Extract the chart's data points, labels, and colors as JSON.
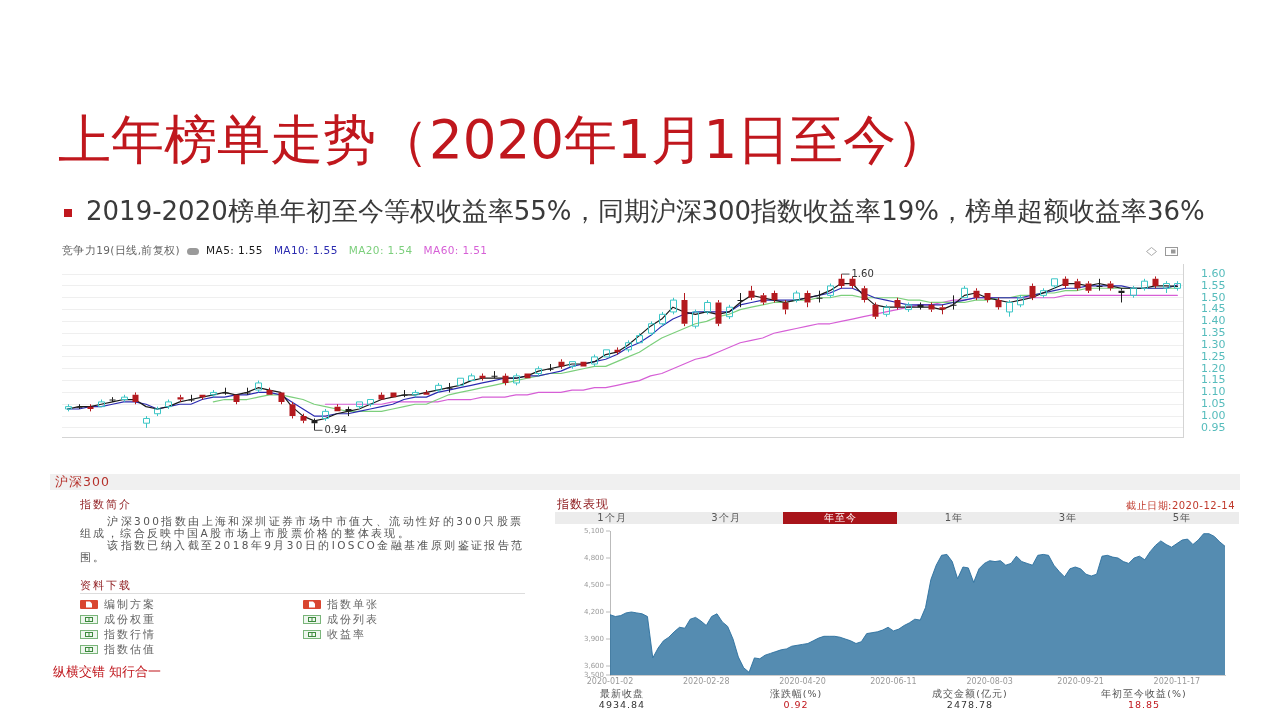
{
  "chart_data": [
    {
      "type": "candlestick",
      "title": "上年榜单走势（2020年1月1日至今）",
      "subtitle": "2019-2020榜单年初至今等权收益率55%，同期沪深300指数收益率19%，榜单超额收益率36%",
      "legend_title": "竞争力19(日线,前复权)",
      "legend": "top left",
      "grid": "y",
      "tick_labels": "y",
      "categories": [
        null,
        null,
        null,
        null,
        null,
        null,
        null,
        null,
        null,
        null,
        null,
        null,
        null,
        null,
        null,
        null,
        null,
        null,
        null,
        null,
        null,
        null,
        null,
        null,
        null,
        null,
        null,
        null,
        null,
        null,
        null,
        null,
        null,
        null,
        null,
        null,
        null,
        null,
        null,
        null,
        null,
        null,
        null,
        null,
        null,
        null,
        null,
        null,
        null,
        null,
        null,
        null,
        null,
        null,
        null,
        null,
        null,
        null,
        null,
        null,
        null,
        null,
        null,
        null,
        null,
        null,
        null,
        null,
        null,
        null,
        null,
        null,
        null,
        null,
        null,
        null,
        null,
        null,
        null,
        null,
        null,
        null,
        null,
        null,
        null,
        null,
        null,
        null,
        null,
        null,
        null,
        null,
        null,
        null,
        null,
        null,
        null,
        null,
        null,
        null
      ],
      "ylim": [
        0.91,
        1.64
      ],
      "yticks": [
        0.95,
        {
          "value": 1,
          "label": "1.00"
        },
        1.05,
        {
          "value": 1.1,
          "label": "1.10"
        },
        1.15,
        {
          "value": 1.2,
          "label": "1.20"
        },
        1.25,
        {
          "value": 1.3,
          "label": "1.30"
        },
        1.35,
        {
          "value": 1.4,
          "label": "1.40"
        },
        1.45,
        {
          "value": 1.5,
          "label": "1.50"
        },
        1.55,
        {
          "value": 1.6,
          "label": "1.60"
        }
      ],
      "series": [
        {
          "type": "candlestick",
          "ohlc": [
            [
              1.03,
              1.05,
              1.02,
              1.04
            ],
            [
              1.04,
              1.05,
              1.03,
              1.04
            ],
            [
              1.04,
              1.05,
              1.02,
              1.03
            ],
            [
              1.04,
              1.07,
              1.04,
              1.06
            ],
            [
              1.07,
              1.08,
              1.06,
              1.07
            ],
            [
              1.07,
              1.09,
              1.06,
              1.08
            ],
            [
              1.09,
              1.1,
              1.05,
              1.06
            ],
            [
              0.97,
              1.0,
              0.95,
              0.99
            ],
            [
              1.01,
              1.04,
              1.0,
              1.03
            ],
            [
              1.04,
              1.07,
              1.03,
              1.06
            ],
            [
              1.08,
              1.09,
              1.06,
              1.07
            ],
            [
              1.07,
              1.09,
              1.06,
              1.07
            ],
            [
              1.09,
              1.09,
              1.07,
              1.08
            ],
            [
              1.09,
              1.11,
              1.08,
              1.1
            ],
            [
              1.1,
              1.12,
              1.09,
              1.1
            ],
            [
              1.09,
              1.09,
              1.05,
              1.06
            ],
            [
              1.1,
              1.12,
              1.09,
              1.1
            ],
            [
              1.11,
              1.15,
              1.1,
              1.14
            ],
            [
              1.11,
              1.12,
              1.09,
              1.09
            ],
            [
              1.1,
              1.1,
              1.05,
              1.06
            ],
            [
              1.05,
              1.06,
              0.99,
              1.0
            ],
            [
              1.0,
              1.01,
              0.97,
              0.98
            ],
            [
              0.98,
              0.99,
              0.94,
              0.97
            ],
            [
              0.99,
              1.03,
              0.98,
              1.02
            ],
            [
              1.04,
              1.05,
              1.02,
              1.02
            ],
            [
              1.03,
              1.04,
              1.0,
              1.02
            ],
            [
              1.04,
              1.06,
              1.03,
              1.06
            ],
            [
              1.05,
              1.07,
              1.04,
              1.07
            ],
            [
              1.09,
              1.1,
              1.07,
              1.07
            ],
            [
              1.1,
              1.1,
              1.08,
              1.08
            ],
            [
              1.09,
              1.11,
              1.08,
              1.09
            ],
            [
              1.09,
              1.11,
              1.08,
              1.1
            ],
            [
              1.1,
              1.11,
              1.09,
              1.09
            ],
            [
              1.11,
              1.14,
              1.1,
              1.13
            ],
            [
              1.12,
              1.14,
              1.1,
              1.12
            ],
            [
              1.13,
              1.16,
              1.13,
              1.16
            ],
            [
              1.15,
              1.18,
              1.15,
              1.17
            ],
            [
              1.17,
              1.18,
              1.15,
              1.16
            ],
            [
              1.17,
              1.19,
              1.16,
              1.17
            ],
            [
              1.17,
              1.18,
              1.13,
              1.14
            ],
            [
              1.14,
              1.18,
              1.13,
              1.17
            ],
            [
              1.18,
              1.18,
              1.16,
              1.16
            ],
            [
              1.18,
              1.21,
              1.17,
              1.2
            ],
            [
              1.2,
              1.22,
              1.19,
              1.2
            ],
            [
              1.23,
              1.24,
              1.2,
              1.21
            ],
            [
              1.21,
              1.23,
              1.2,
              1.23
            ],
            [
              1.23,
              1.23,
              1.21,
              1.21
            ],
            [
              1.22,
              1.26,
              1.21,
              1.25
            ],
            [
              1.25,
              1.28,
              1.25,
              1.28
            ],
            [
              1.28,
              1.29,
              1.26,
              1.27
            ],
            [
              1.28,
              1.32,
              1.27,
              1.31
            ],
            [
              1.31,
              1.35,
              1.31,
              1.34
            ],
            [
              1.35,
              1.4,
              1.34,
              1.39
            ],
            [
              1.39,
              1.44,
              1.38,
              1.43
            ],
            [
              1.44,
              1.5,
              1.43,
              1.49
            ],
            [
              1.49,
              1.52,
              1.38,
              1.39
            ],
            [
              1.38,
              1.45,
              1.37,
              1.44
            ],
            [
              1.44,
              1.49,
              1.43,
              1.48
            ],
            [
              1.48,
              1.49,
              1.38,
              1.39
            ],
            [
              1.42,
              1.47,
              1.41,
              1.46
            ],
            [
              1.49,
              1.52,
              1.46,
              1.49
            ],
            [
              1.53,
              1.55,
              1.49,
              1.5
            ],
            [
              1.51,
              1.52,
              1.47,
              1.48
            ],
            [
              1.52,
              1.53,
              1.48,
              1.49
            ],
            [
              1.48,
              1.49,
              1.43,
              1.45
            ],
            [
              1.49,
              1.53,
              1.48,
              1.52
            ],
            [
              1.52,
              1.53,
              1.46,
              1.48
            ],
            [
              1.5,
              1.53,
              1.48,
              1.5
            ],
            [
              1.51,
              1.56,
              1.5,
              1.55
            ],
            [
              1.58,
              1.6,
              1.54,
              1.55
            ],
            [
              1.58,
              1.59,
              1.54,
              1.55
            ],
            [
              1.54,
              1.55,
              1.48,
              1.49
            ],
            [
              1.47,
              1.48,
              1.41,
              1.42
            ],
            [
              1.43,
              1.47,
              1.42,
              1.46
            ],
            [
              1.49,
              1.5,
              1.45,
              1.46
            ],
            [
              1.45,
              1.48,
              1.44,
              1.47
            ],
            [
              1.47,
              1.48,
              1.45,
              1.46
            ],
            [
              1.47,
              1.48,
              1.44,
              1.45
            ],
            [
              1.46,
              1.47,
              1.43,
              1.45
            ],
            [
              1.47,
              1.51,
              1.45,
              1.47
            ],
            [
              1.5,
              1.55,
              1.5,
              1.54
            ],
            [
              1.53,
              1.54,
              1.49,
              1.5
            ],
            [
              1.52,
              1.52,
              1.48,
              1.49
            ],
            [
              1.49,
              1.5,
              1.45,
              1.46
            ],
            [
              1.44,
              1.49,
              1.42,
              1.48
            ],
            [
              1.47,
              1.51,
              1.46,
              1.5
            ],
            [
              1.55,
              1.56,
              1.49,
              1.5
            ],
            [
              1.51,
              1.54,
              1.5,
              1.53
            ],
            [
              1.55,
              1.58,
              1.54,
              1.58
            ],
            [
              1.58,
              1.59,
              1.54,
              1.55
            ],
            [
              1.57,
              1.58,
              1.53,
              1.54
            ],
            [
              1.56,
              1.57,
              1.52,
              1.53
            ],
            [
              1.55,
              1.58,
              1.53,
              1.55
            ],
            [
              1.56,
              1.57,
              1.53,
              1.54
            ],
            [
              1.53,
              1.54,
              1.48,
              1.52
            ],
            [
              1.51,
              1.55,
              1.5,
              1.54
            ],
            [
              1.54,
              1.58,
              1.53,
              1.57
            ],
            [
              1.58,
              1.59,
              1.54,
              1.55
            ],
            [
              1.54,
              1.57,
              1.52,
              1.56
            ],
            [
              1.54,
              1.57,
              1.53,
              1.56
            ]
          ],
          "colors": [
            "#3cc6c6",
            "#1f1f1f",
            "#b3191e",
            "#3cc6c6",
            "#1f1f1f",
            "#3cc6c6",
            "#b3191e",
            "#3cc6c6",
            "#3cc6c6",
            "#3cc6c6",
            "#b3191e",
            "#1f1f1f",
            "#b3191e",
            "#3cc6c6",
            "#1f1f1f",
            "#b3191e",
            "#1f1f1f",
            "#3cc6c6",
            "#b3191e",
            "#b3191e",
            "#b3191e",
            "#b3191e",
            "#1f1f1f",
            "#3cc6c6",
            "#b3191e",
            "#1f1f1f",
            "#3cc6c6",
            "#3cc6c6",
            "#b3191e",
            "#b3191e",
            "#1f1f1f",
            "#3cc6c6",
            "#b3191e",
            "#3cc6c6",
            "#1f1f1f",
            "#3cc6c6",
            "#3cc6c6",
            "#b3191e",
            "#1f1f1f",
            "#b3191e",
            "#3cc6c6",
            "#b3191e",
            "#3cc6c6",
            "#1f1f1f",
            "#b3191e",
            "#3cc6c6",
            "#b3191e",
            "#3cc6c6",
            "#3cc6c6",
            "#b3191e",
            "#3cc6c6",
            "#3cc6c6",
            "#3cc6c6",
            "#3cc6c6",
            "#3cc6c6",
            "#b3191e",
            "#3cc6c6",
            "#3cc6c6",
            "#b3191e",
            "#3cc6c6",
            "#1f1f1f",
            "#b3191e",
            "#b3191e",
            "#b3191e",
            "#b3191e",
            "#3cc6c6",
            "#b3191e",
            "#1f1f1f",
            "#3cc6c6",
            "#b3191e",
            "#b3191e",
            "#b3191e",
            "#b3191e",
            "#3cc6c6",
            "#b3191e",
            "#3cc6c6",
            "#1f1f1f",
            "#b3191e",
            "#b3191e",
            "#1f1f1f",
            "#3cc6c6",
            "#b3191e",
            "#b3191e",
            "#b3191e",
            "#3cc6c6",
            "#3cc6c6",
            "#b3191e",
            "#3cc6c6",
            "#3cc6c6",
            "#b3191e",
            "#b3191e",
            "#b3191e",
            "#1f1f1f",
            "#b3191e",
            "#1f1f1f",
            "#3cc6c6",
            "#3cc6c6",
            "#b3191e",
            "#3cc6c6",
            "#3cc6c6"
          ]
        },
        {
          "type": "line",
          "name": "MA5: 1.55",
          "color": "#1a1a1a",
          "values": [
            1.03,
            1.04,
            1.04,
            1.05,
            1.06,
            1.07,
            1.07,
            1.04,
            1.03,
            1.04,
            1.06,
            1.07,
            1.08,
            1.09,
            1.1,
            1.09,
            1.1,
            1.12,
            1.11,
            1.1,
            1.04,
            1.0,
            0.98,
            0.99,
            1.01,
            1.02,
            1.03,
            1.05,
            1.07,
            1.08,
            1.09,
            1.09,
            1.1,
            1.11,
            1.12,
            1.13,
            1.15,
            1.16,
            1.16,
            1.16,
            1.16,
            1.17,
            1.19,
            1.2,
            1.21,
            1.22,
            1.22,
            1.23,
            1.26,
            1.27,
            1.3,
            1.34,
            1.38,
            1.41,
            1.46,
            1.44,
            1.43,
            1.44,
            1.43,
            1.44,
            1.48,
            1.51,
            1.5,
            1.49,
            1.48,
            1.49,
            1.5,
            1.51,
            1.53,
            1.56,
            1.56,
            1.51,
            1.47,
            1.46,
            1.46,
            1.46,
            1.46,
            1.46,
            1.45,
            1.47,
            1.51,
            1.52,
            1.5,
            1.49,
            1.48,
            1.49,
            1.5,
            1.52,
            1.54,
            1.56,
            1.56,
            1.55,
            1.56,
            1.55,
            1.54,
            1.54,
            1.54,
            1.55,
            1.55,
            1.548
          ]
        },
        {
          "type": "line",
          "name": "MA10: 1.55",
          "color": "#2b2bb0",
          "values": [
            1.03,
            1.03,
            1.04,
            1.04,
            1.05,
            1.06,
            1.06,
            1.05,
            1.03,
            1.04,
            1.05,
            1.05,
            1.07,
            1.08,
            1.08,
            1.09,
            1.09,
            1.1,
            1.1,
            1.09,
            1.06,
            1.03,
            1.0,
            1.0,
            1.01,
            1.01,
            1.02,
            1.03,
            1.04,
            1.05,
            1.07,
            1.08,
            1.08,
            1.1,
            1.11,
            1.12,
            1.13,
            1.14,
            1.15,
            1.16,
            1.16,
            1.17,
            1.17,
            1.18,
            1.19,
            1.21,
            1.22,
            1.23,
            1.24,
            1.26,
            1.29,
            1.31,
            1.34,
            1.38,
            1.41,
            1.43,
            1.44,
            1.44,
            1.44,
            1.44,
            1.47,
            1.48,
            1.49,
            1.49,
            1.49,
            1.49,
            1.5,
            1.51,
            1.52,
            1.54,
            1.54,
            1.52,
            1.5,
            1.49,
            1.48,
            1.47,
            1.47,
            1.47,
            1.47,
            1.48,
            1.49,
            1.5,
            1.5,
            1.5,
            1.5,
            1.5,
            1.51,
            1.52,
            1.53,
            1.54,
            1.54,
            1.55,
            1.55,
            1.55,
            1.55,
            1.54,
            1.54,
            1.54,
            1.54,
            1.554
          ]
        },
        {
          "type": "line",
          "name": "MA20: 1.54",
          "color": "#7ccf7c",
          "values": [
            null,
            null,
            null,
            null,
            null,
            null,
            null,
            null,
            null,
            null,
            null,
            null,
            null,
            1.06,
            1.07,
            1.07,
            1.07,
            1.08,
            1.09,
            1.09,
            1.08,
            1.07,
            1.05,
            1.04,
            1.03,
            1.02,
            1.02,
            1.02,
            1.02,
            1.03,
            1.04,
            1.05,
            1.05,
            1.07,
            1.09,
            1.1,
            1.11,
            1.12,
            1.13,
            1.14,
            1.15,
            1.16,
            1.17,
            1.18,
            1.18,
            1.19,
            1.2,
            1.21,
            1.21,
            1.23,
            1.25,
            1.27,
            1.3,
            1.33,
            1.35,
            1.37,
            1.39,
            1.4,
            1.42,
            1.43,
            1.45,
            1.46,
            1.47,
            1.48,
            1.48,
            1.49,
            1.49,
            1.5,
            1.5,
            1.51,
            1.51,
            1.5,
            1.5,
            1.5,
            1.5,
            1.49,
            1.49,
            1.48,
            1.48,
            1.48,
            1.48,
            1.49,
            1.49,
            1.5,
            1.5,
            1.51,
            1.51,
            1.52,
            1.52,
            1.53,
            1.53,
            1.54,
            1.54,
            1.54,
            1.54,
            1.54,
            1.54,
            1.54,
            1.54,
            1.54
          ]
        },
        {
          "type": "line",
          "name": "MA60: 1.51",
          "color": "#d65fd6",
          "values": [
            null,
            null,
            null,
            null,
            null,
            null,
            null,
            null,
            null,
            null,
            null,
            null,
            null,
            null,
            null,
            null,
            null,
            null,
            null,
            null,
            null,
            null,
            null,
            1.05,
            1.05,
            1.05,
            1.05,
            1.05,
            1.05,
            1.06,
            1.06,
            1.06,
            1.06,
            1.06,
            1.07,
            1.07,
            1.07,
            1.08,
            1.08,
            1.08,
            1.09,
            1.09,
            1.1,
            1.1,
            1.1,
            1.11,
            1.11,
            1.12,
            1.12,
            1.13,
            1.14,
            1.15,
            1.17,
            1.18,
            1.2,
            1.22,
            1.24,
            1.25,
            1.27,
            1.29,
            1.31,
            1.32,
            1.33,
            1.35,
            1.36,
            1.37,
            1.38,
            1.39,
            1.39,
            1.4,
            1.41,
            1.42,
            1.43,
            1.44,
            1.45,
            1.46,
            1.47,
            1.47,
            1.48,
            1.49,
            1.49,
            1.5,
            1.5,
            1.5,
            1.5,
            1.5,
            1.5,
            1.5,
            1.5,
            1.51,
            1.51,
            1.51,
            1.51,
            1.51,
            1.51,
            1.51,
            1.51,
            1.51,
            1.51,
            1.51
          ]
        }
      ],
      "annotations": [
        "1.60",
        "0.94",
        "纵横交错 知行合一"
      ]
    },
    {
      "type": "other",
      "title": "沪深300",
      "annotations": [
        "指数简介",
        "沪深300指数由上海和深圳证券市场中市值大、流动性好的300只股票组成，综合反映中国A股市场上市股票价格的整体表现。",
        "该指数已纳入截至2018年9月30日的IOSCO金融基准原则鉴证报告范围。",
        "资料下载",
        "编制方案",
        "指数单张",
        "成份权重",
        "成份列表",
        "指数行情",
        "收益率",
        "指数估值"
      ]
    },
    {
      "type": "area",
      "title": "指数表现",
      "subtitle": "截止日期:2020-12-14",
      "color": "#2b6f9e",
      "categories": [
        "2020-01-02",
        null,
        null,
        null,
        null,
        null,
        null,
        null,
        null,
        null,
        null,
        null,
        null,
        null,
        null,
        null,
        null,
        null,
        "2020-02-28",
        null,
        null,
        null,
        null,
        null,
        null,
        null,
        null,
        null,
        null,
        null,
        null,
        null,
        null,
        null,
        null,
        null,
        "2020-04-20",
        null,
        null,
        null,
        null,
        null,
        null,
        null,
        null,
        null,
        null,
        null,
        null,
        null,
        null,
        null,
        null,
        "2020-06-11",
        null,
        null,
        null,
        null,
        null,
        null,
        null,
        null,
        null,
        null,
        null,
        null,
        null,
        null,
        null,
        null,
        null,
        "2020-08-03",
        null,
        null,
        null,
        null,
        null,
        null,
        null,
        null,
        null,
        null,
        null,
        null,
        null,
        null,
        null,
        null,
        "2020-09-21",
        null,
        null,
        null,
        null,
        null,
        null,
        null,
        null,
        null,
        null,
        null,
        null,
        null,
        null,
        null,
        null,
        null,
        "2020-11-17",
        null,
        null,
        null,
        null,
        null,
        null,
        null,
        null,
        null
      ],
      "values": [
        4170,
        4150,
        4160,
        4190,
        4200,
        4190,
        4180,
        4150,
        3690,
        3800,
        3880,
        3920,
        3980,
        4030,
        4020,
        4120,
        4140,
        4100,
        4050,
        4150,
        4180,
        4090,
        4040,
        3900,
        3700,
        3580,
        3530,
        3690,
        3680,
        3720,
        3740,
        3760,
        3780,
        3790,
        3820,
        3830,
        3840,
        3850,
        3880,
        3910,
        3930,
        3930,
        3930,
        3920,
        3900,
        3880,
        3850,
        3870,
        3960,
        3970,
        3980,
        4000,
        4030,
        3990,
        4010,
        4050,
        4080,
        4120,
        4110,
        4250,
        4560,
        4720,
        4830,
        4840,
        4760,
        4570,
        4700,
        4690,
        4530,
        4680,
        4740,
        4770,
        4760,
        4770,
        4720,
        4740,
        4820,
        4760,
        4740,
        4720,
        4830,
        4840,
        4830,
        4720,
        4650,
        4590,
        4680,
        4700,
        4680,
        4620,
        4600,
        4620,
        4820,
        4830,
        4810,
        4800,
        4760,
        4740,
        4800,
        4820,
        4780,
        4870,
        4940,
        4990,
        4950,
        4920,
        4960,
        5000,
        5010,
        4950,
        5000,
        5070,
        5070,
        5040,
        4980,
        4930
      ],
      "ylim": [
        3500,
        5100
      ],
      "yticks": [
        {
          "value": 3500,
          "label": "3,500"
        },
        {
          "value": 3600,
          "label": "3,600"
        },
        {
          "value": 3900,
          "label": "3,900"
        },
        {
          "value": 4200,
          "label": "4,200"
        },
        {
          "value": 4500,
          "label": "4,500"
        },
        {
          "value": 4800,
          "label": "4,800"
        },
        {
          "value": 5100,
          "label": "5,100"
        }
      ],
      "annotations": [
        "1个月",
        "3个月",
        "年至今",
        "1年",
        "3年",
        "5年",
        "最新收盘",
        "4934.84",
        "涨跌幅(%)",
        "0.92",
        "成交金额(亿元)",
        "2478.78",
        "年初至今收益(%)",
        "18.85"
      ]
    }
  ]
}
